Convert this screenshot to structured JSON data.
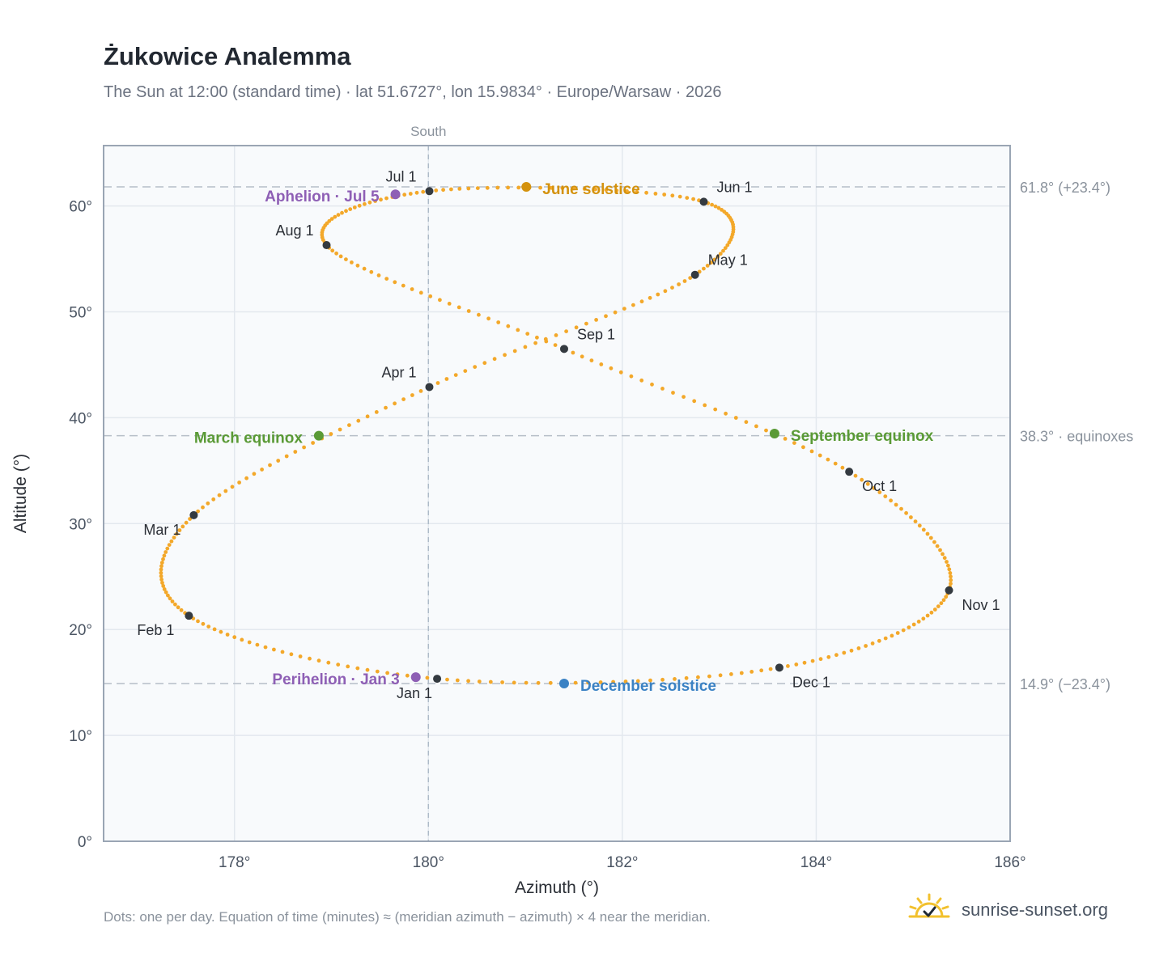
{
  "title": "Żukowice Analemma",
  "subtitle": "The Sun at 12:00 (standard time) · lat 51.6727°, lon 15.9834° · Europe/Warsaw · 2026",
  "footnote": "Dots: one per day. Equation of time (minutes) ≈ (meridian azimuth − azimuth) × 4 near the meridian.",
  "brand": {
    "name": "sunrise-sunset.org",
    "icon": "sun-logo-icon"
  },
  "colors": {
    "path": "#f3a82a",
    "month": "#343a40",
    "solstice_june": "#d4920e",
    "solstice_december": "#3b82c4",
    "equinox": "#5a9a36",
    "apsis": "#8e5fb5",
    "grid": "#e3e8ee",
    "plot_bg": "#f8fafc"
  },
  "chart_data": {
    "type": "scatter",
    "xlabel": "Azimuth (°)",
    "ylabel": "Altitude (°)",
    "xlim": [
      176.65,
      186
    ],
    "ylim": [
      0,
      65.7
    ],
    "xticks": [
      178,
      180,
      182,
      184,
      186
    ],
    "yticks": [
      0,
      10,
      20,
      30,
      40,
      50,
      60
    ],
    "x_tick_labels": [
      "178°",
      "180°",
      "182°",
      "184°",
      "186°"
    ],
    "y_tick_labels": [
      "0°",
      "10°",
      "20°",
      "30°",
      "40°",
      "50°",
      "60°"
    ],
    "grid": true,
    "meridian": {
      "azimuth": 180,
      "label": "South"
    },
    "reference_lines": [
      {
        "altitude": 61.8,
        "label": "61.8° (+23.4°)"
      },
      {
        "altitude": 38.3,
        "label": "38.3° · equinoxes"
      },
      {
        "altitude": 14.9,
        "label": "14.9° (−23.4°)"
      }
    ],
    "daily_path_anchors": [
      {
        "date": "Jan 1",
        "azimuth": 180.09,
        "altitude": 15.35
      },
      {
        "date": "Feb 1",
        "azimuth": 177.53,
        "altitude": 21.3
      },
      {
        "date": "Mar 1",
        "azimuth": 177.58,
        "altitude": 30.8
      },
      {
        "date": "Apr 1",
        "azimuth": 180.01,
        "altitude": 42.9
      },
      {
        "date": "May 1",
        "azimuth": 182.75,
        "altitude": 53.5
      },
      {
        "date": "Jun 1",
        "azimuth": 182.84,
        "altitude": 60.4
      },
      {
        "date": "Jul 1",
        "azimuth": 180.01,
        "altitude": 61.4
      },
      {
        "date": "Aug 1",
        "azimuth": 178.95,
        "altitude": 56.3
      },
      {
        "date": "Sep 1",
        "azimuth": 181.4,
        "altitude": 46.5
      },
      {
        "date": "Oct 1",
        "azimuth": 184.34,
        "altitude": 34.9
      },
      {
        "date": "Nov 1",
        "azimuth": 185.37,
        "altitude": 23.7
      },
      {
        "date": "Dec 1",
        "azimuth": 183.62,
        "altitude": 16.4
      }
    ],
    "events": [
      {
        "label": "June solstice",
        "azimuth": 181.01,
        "altitude": 61.8,
        "kind": "solstice_june"
      },
      {
        "label": "December solstice",
        "azimuth": 181.4,
        "altitude": 14.9,
        "kind": "solstice_december"
      },
      {
        "label": "March equinox",
        "azimuth": 178.87,
        "altitude": 38.3,
        "kind": "equinox"
      },
      {
        "label": "September equinox",
        "azimuth": 183.57,
        "altitude": 38.5,
        "kind": "equinox"
      },
      {
        "label": "Aphelion · Jul 5",
        "azimuth": 179.66,
        "altitude": 61.1,
        "kind": "apsis"
      },
      {
        "label": "Perihelion · Jan 3",
        "azimuth": 179.87,
        "altitude": 15.5,
        "kind": "apsis"
      }
    ]
  }
}
